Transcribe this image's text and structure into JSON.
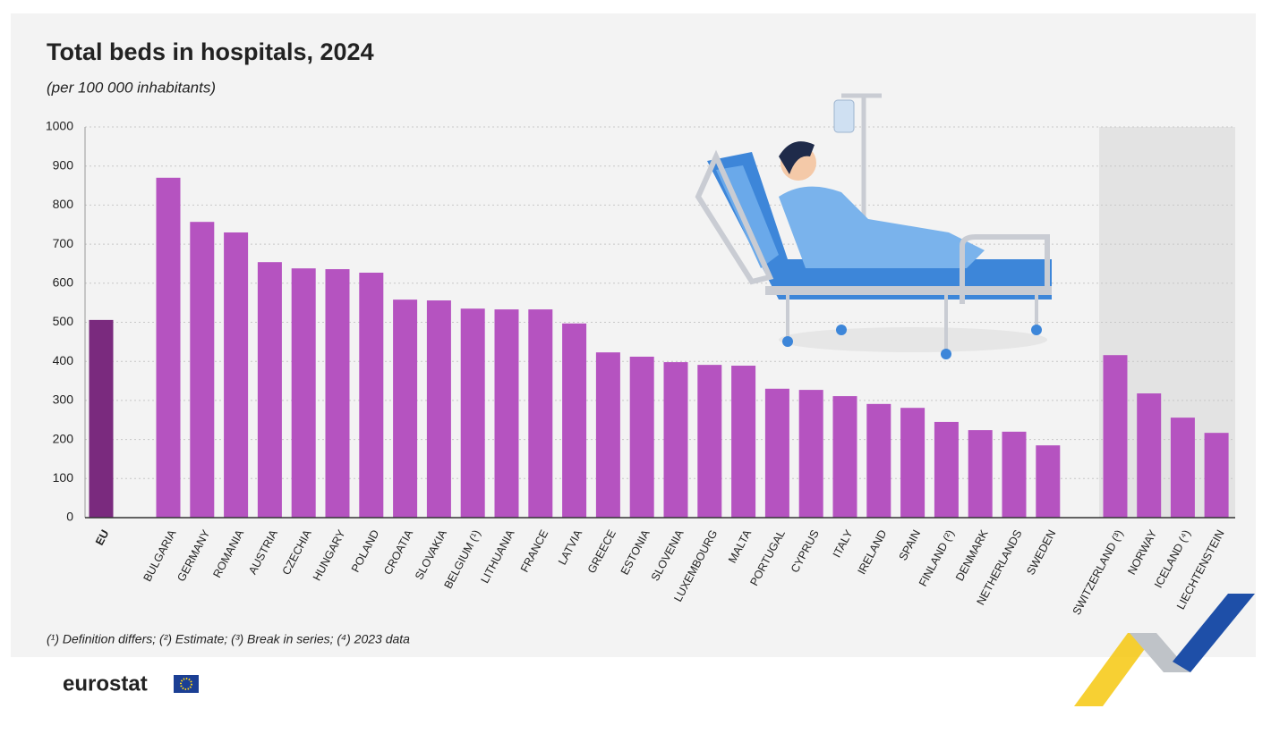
{
  "chart_data": {
    "type": "bar",
    "title": "Total beds in hospitals, 2024",
    "subtitle": "(per 100 000 inhabitants)",
    "categories": [
      "EU",
      "BULGARIA",
      "GERMANY",
      "ROMANIA",
      "AUSTRIA",
      "CZECHIA",
      "HUNGARY",
      "POLAND",
      "CROATIA",
      "SLOVAKIA",
      "BELGIUM (¹)",
      "LITHUANIA",
      "FRANCE",
      "LATVIA",
      "GREECE",
      "ESTONIA",
      "SLOVENIA",
      "LUXEMBOURG",
      "MALTA",
      "PORTUGAL",
      "CYPRUS",
      "ITALY",
      "IRELAND",
      "SPAIN",
      "FINLAND (²)",
      "DENMARK",
      "NETHERLANDS",
      "SWEDEN",
      "SWITZERLAND (³)",
      "NORWAY",
      "ICELAND (⁴)",
      "LIECHTENSTEIN"
    ],
    "values": [
      506,
      870,
      757,
      730,
      654,
      638,
      636,
      627,
      558,
      556,
      535,
      533,
      533,
      497,
      423,
      412,
      398,
      391,
      389,
      330,
      327,
      311,
      291,
      281,
      245,
      224,
      220,
      185,
      416,
      318,
      256,
      217
    ],
    "colors": [
      "#7a2a7e",
      "#b553c0",
      "#b553c0",
      "#b553c0",
      "#b553c0",
      "#b553c0",
      "#b553c0",
      "#b553c0",
      "#b553c0",
      "#b553c0",
      "#b553c0",
      "#b553c0",
      "#b553c0",
      "#b553c0",
      "#b553c0",
      "#b553c0",
      "#b553c0",
      "#b553c0",
      "#b553c0",
      "#b553c0",
      "#b553c0",
      "#b553c0",
      "#b553c0",
      "#b553c0",
      "#b553c0",
      "#b553c0",
      "#b553c0",
      "#b553c0",
      "#b553c0",
      "#b553c0",
      "#b553c0",
      "#b553c0"
    ],
    "ylim": [
      0,
      1000
    ],
    "yticks": [
      0,
      100,
      200,
      300,
      400,
      500,
      600,
      700,
      800,
      900,
      1000
    ],
    "grid": true,
    "footnote": "(¹) Definition differs; (²) Estimate; (³) Break in series; (⁴) 2023 data",
    "source": "eurostat"
  }
}
